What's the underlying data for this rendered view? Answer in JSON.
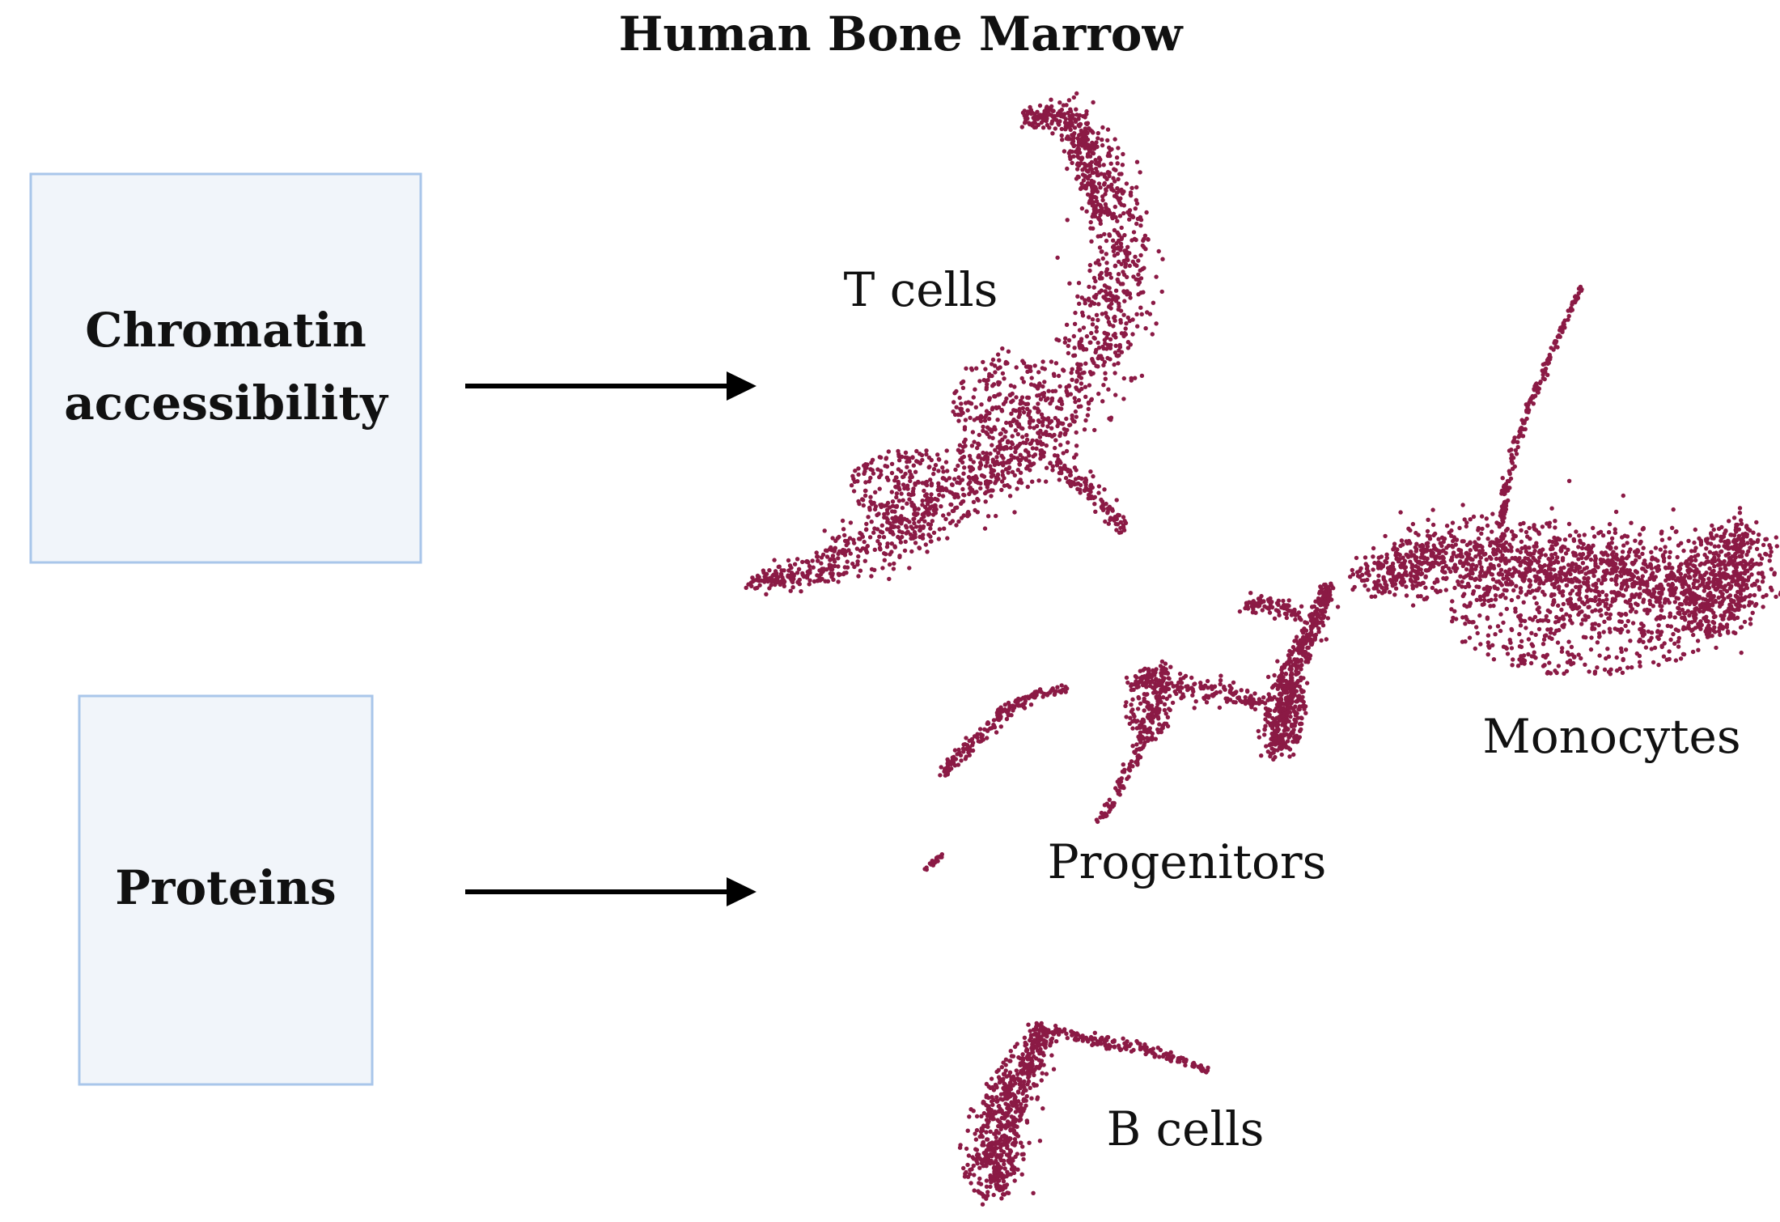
{
  "title": "Human Bone Marrow",
  "inputs": [
    {
      "lines": [
        "Chromatin",
        "accessibility"
      ]
    },
    {
      "lines": [
        "Proteins"
      ]
    }
  ],
  "clusters": [
    {
      "label": "T cells"
    },
    {
      "label": "Monocytes"
    },
    {
      "label": "Progenitors"
    },
    {
      "label": "B cells"
    }
  ],
  "colors": {
    "points": "#8b1a45",
    "box_fill": "#f1f5fa",
    "box_border": "#a9c6ea",
    "arrow": "#000000"
  }
}
